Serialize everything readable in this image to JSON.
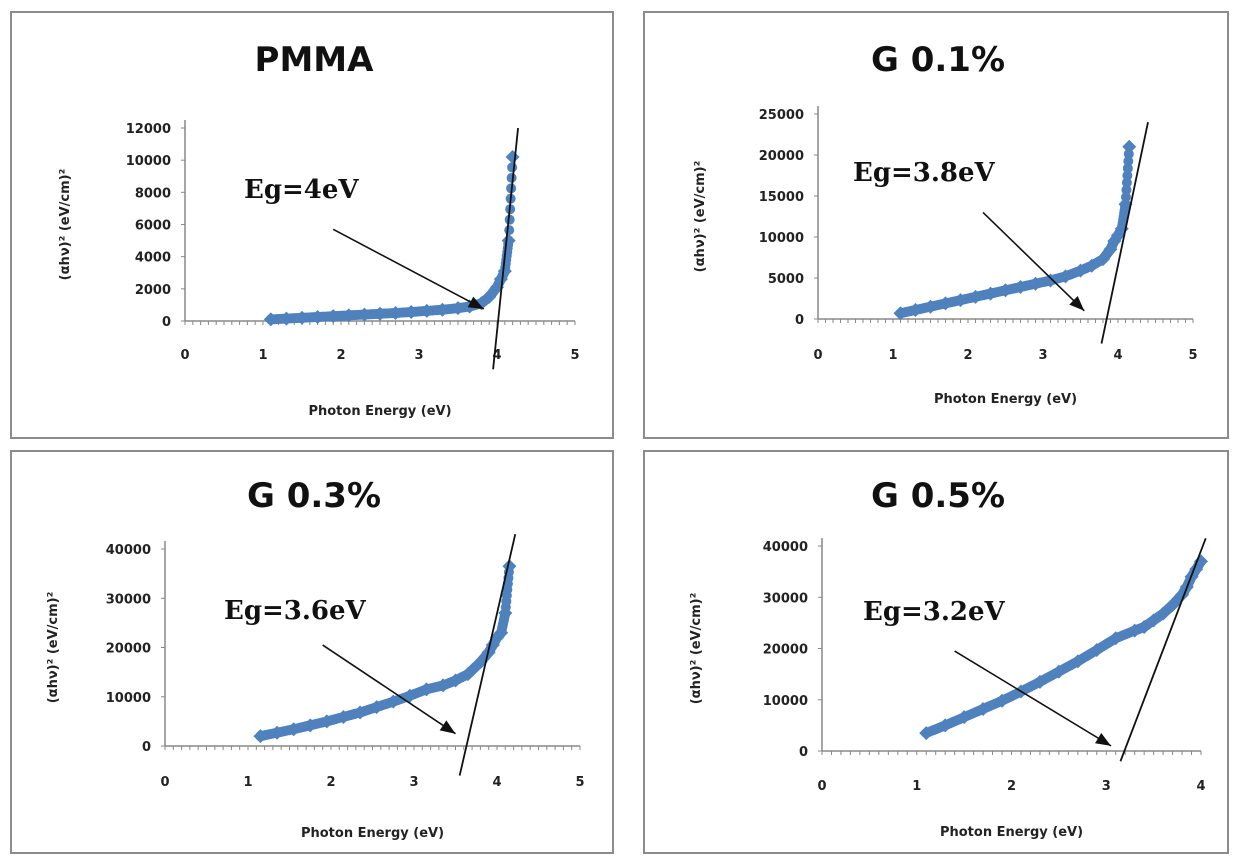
{
  "chart_data": [
    {
      "type": "scatter",
      "title": "PMMA",
      "xlabel": "Photon Energy (eV)",
      "ylabel": "(αhν)² (eV/cm)²",
      "xlim": [
        0,
        5
      ],
      "ylim": [
        0,
        12000
      ],
      "xticks": [
        "0",
        "1",
        "2",
        "3",
        "4",
        "5"
      ],
      "yticks": [
        "0",
        "2000",
        "4000",
        "6000",
        "8000",
        "10000",
        "12000"
      ],
      "annotation": "Eg=4eV",
      "x": [
        1.1,
        1.3,
        1.5,
        1.7,
        1.9,
        2.1,
        2.3,
        2.5,
        2.7,
        2.9,
        3.1,
        3.3,
        3.5,
        3.65,
        3.8,
        3.9,
        4.0,
        4.05,
        4.1,
        4.15,
        4.2
      ],
      "y": [
        100,
        150,
        200,
        250,
        300,
        350,
        400,
        450,
        500,
        560,
        630,
        700,
        800,
        900,
        1100,
        1500,
        2100,
        2600,
        3100,
        5000,
        10200
      ],
      "fit_line": [
        [
          3.95,
          -3000
        ],
        [
          4.27,
          12000
        ]
      ],
      "arrow": [
        [
          1.9,
          5700
        ],
        [
          3.83,
          750
        ]
      ],
      "series_color": "#4f81bd"
    },
    {
      "type": "scatter",
      "title": "G 0.1%",
      "xlabel": "Photon Energy (eV)",
      "ylabel": "(αhν)² (eV/cm)²",
      "xlim": [
        0,
        5
      ],
      "ylim": [
        0,
        25000
      ],
      "xticks": [
        "0",
        "1",
        "2",
        "3",
        "4",
        "5"
      ],
      "yticks": [
        "0",
        "5000",
        "10000",
        "15000",
        "20000",
        "25000"
      ],
      "annotation": "Eg=3.8eV",
      "x": [
        1.1,
        1.3,
        1.5,
        1.7,
        1.9,
        2.1,
        2.3,
        2.5,
        2.7,
        2.9,
        3.1,
        3.3,
        3.5,
        3.65,
        3.8,
        3.9,
        3.95,
        4.0,
        4.05,
        4.1,
        4.15
      ],
      "y": [
        700,
        1100,
        1500,
        1900,
        2300,
        2700,
        3100,
        3500,
        3900,
        4300,
        4700,
        5200,
        5900,
        6500,
        7300,
        8500,
        9500,
        10200,
        11000,
        14000,
        21000
      ],
      "fit_line": [
        [
          3.78,
          -3000
        ],
        [
          4.4,
          24000
        ]
      ],
      "arrow": [
        [
          2.2,
          13000
        ],
        [
          3.55,
          1000
        ]
      ],
      "series_color": "#4f81bd"
    },
    {
      "type": "scatter",
      "title": "G 0.3%",
      "xlabel": "Photon Energy (eV)",
      "ylabel": "(αhν)² (eV/cm)²",
      "xlim": [
        0,
        5
      ],
      "ylim": [
        0,
        40000
      ],
      "xticks": [
        "0",
        "1",
        "2",
        "3",
        "4",
        "5"
      ],
      "yticks": [
        "0",
        "10000",
        "20000",
        "30000",
        "40000"
      ],
      "annotation": "Eg=3.6eV",
      "x": [
        1.15,
        1.35,
        1.55,
        1.75,
        1.95,
        2.15,
        2.35,
        2.55,
        2.75,
        2.95,
        3.15,
        3.35,
        3.5,
        3.65,
        3.8,
        3.9,
        3.95,
        4.0,
        4.05,
        4.1,
        4.15
      ],
      "y": [
        2000,
        2700,
        3400,
        4200,
        5000,
        5900,
        6800,
        7900,
        9000,
        10200,
        11500,
        12300,
        13300,
        14600,
        17000,
        19000,
        20500,
        22000,
        23000,
        27000,
        36500
      ],
      "fit_line": [
        [
          3.55,
          -6000
        ],
        [
          4.22,
          43000
        ]
      ],
      "arrow": [
        [
          1.9,
          20500
        ],
        [
          3.5,
          2500
        ]
      ],
      "series_color": "#4f81bd"
    },
    {
      "type": "scatter",
      "title": "G 0.5%",
      "xlabel": "Photon Energy (eV)",
      "ylabel": "(αhν)² (eV/cm)²",
      "xlim": [
        0,
        4
      ],
      "ylim": [
        0,
        40000
      ],
      "xticks": [
        "0",
        "1",
        "2",
        "3",
        "4"
      ],
      "yticks": [
        "0",
        "10000",
        "20000",
        "30000",
        "40000"
      ],
      "annotation": "Eg=3.2eV",
      "x": [
        1.1,
        1.3,
        1.5,
        1.7,
        1.9,
        2.1,
        2.3,
        2.5,
        2.7,
        2.9,
        3.1,
        3.3,
        3.4,
        3.5,
        3.6,
        3.7,
        3.8,
        3.85,
        3.9,
        3.95,
        4.0
      ],
      "y": [
        3500,
        5000,
        6600,
        8200,
        9800,
        11600,
        13500,
        15500,
        17500,
        19700,
        22000,
        23500,
        24200,
        25500,
        26800,
        28500,
        30500,
        32000,
        34000,
        35500,
        37000
      ],
      "fit_line": [
        [
          3.15,
          -2000
        ],
        [
          4.05,
          41500
        ]
      ],
      "arrow": [
        [
          1.4,
          19500
        ],
        [
          3.05,
          1000
        ]
      ],
      "series_color": "#4f81bd"
    }
  ]
}
